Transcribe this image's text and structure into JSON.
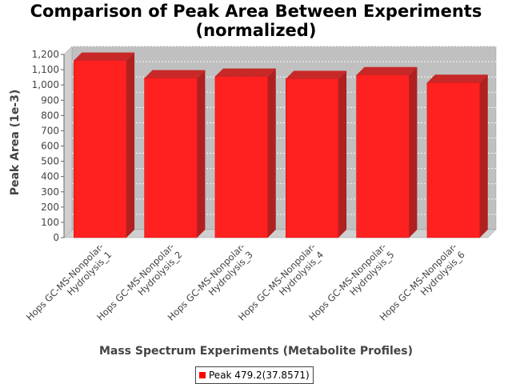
{
  "chart_data": {
    "type": "bar",
    "title_lines": [
      "Comparison of Peak Area Between Experiments",
      "(normalized)"
    ],
    "xlabel": "Mass Spectrum Experiments (Metabolite Profiles)",
    "ylabel": "Peak Area (1e-3)",
    "categories": [
      [
        "Hops GC-MS-Nonpolar-",
        "Hydrolysis_1"
      ],
      [
        "Hops GC-MS-Nonpolar-",
        "Hydrolysis_2"
      ],
      [
        "Hops GC-MS-Nonpolar-",
        "Hydrolysis_3"
      ],
      [
        "Hops GC-MS-Nonpolar-",
        "Hydrolysis_4"
      ],
      [
        "Hops GC-MS-Nonpolar-",
        "Hydrolysis_5"
      ],
      [
        "Hops GC-MS-Nonpolar-",
        "Hydrolysis_6"
      ]
    ],
    "series": [
      {
        "name": "Peak 479.2(37.8571)",
        "values": [
          1160,
          1045,
          1055,
          1040,
          1065,
          1015
        ]
      }
    ],
    "ylim": [
      0,
      1200
    ],
    "yticks": [
      0,
      100,
      200,
      300,
      400,
      500,
      600,
      700,
      800,
      900,
      1000,
      1100,
      1200
    ],
    "ytick_labels": [
      "0",
      "100",
      "200",
      "300",
      "400",
      "500",
      "600",
      "700",
      "800",
      "900",
      "1,000",
      "1,100",
      "1,200"
    ],
    "grid": true,
    "legend_position": "bottom",
    "colors": {
      "bar": "#ff2020",
      "bar_top": "#c82828",
      "bar_side": "#b02020",
      "plot_bg": "#c0c0c0",
      "wall": "#d0d0d0"
    }
  }
}
